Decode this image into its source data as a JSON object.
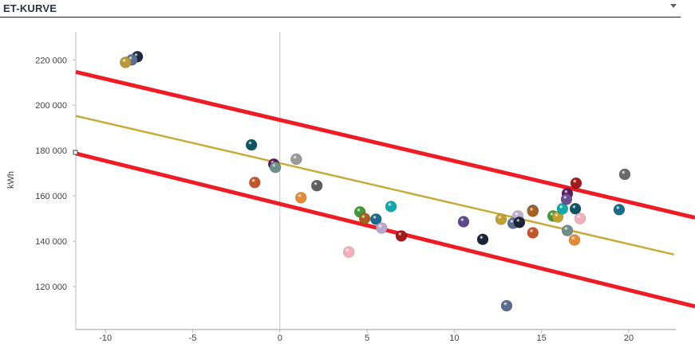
{
  "header": {
    "title": "ET-KURVE",
    "menu_icon": "caret-down-icon"
  },
  "chart_data": {
    "type": "scatter",
    "title": "ET-KURVE",
    "xlabel": "",
    "ylabel": "kWh",
    "xlim": [
      -11.7,
      22.7
    ],
    "ylim": [
      101000,
      232400
    ],
    "xticks": [
      -10,
      -5,
      0,
      5,
      10,
      15,
      20
    ],
    "xtick_labels": [
      "-10",
      "-5",
      "0",
      "5",
      "10",
      "15",
      "20"
    ],
    "yticks": [
      120000,
      140000,
      160000,
      180000,
      200000,
      220000
    ],
    "ytick_labels": [
      "120 000",
      "140 000",
      "160 000",
      "180 000",
      "200 000",
      "220 000"
    ],
    "grid": false,
    "points": [
      {
        "x": -8.17,
        "y": 221400,
        "color": "#1f2a3e"
      },
      {
        "x": -8.49,
        "y": 220000,
        "color": "#5b6e8f"
      },
      {
        "x": -8.85,
        "y": 218900,
        "color": "#b89a3a"
      },
      {
        "x": -1.63,
        "y": 182500,
        "color": "#0e5561"
      },
      {
        "x": -0.35,
        "y": 174000,
        "color": "#5a1a5e"
      },
      {
        "x": -0.26,
        "y": 172600,
        "color": "#6f8f86"
      },
      {
        "x": -1.44,
        "y": 165900,
        "color": "#c2562a"
      },
      {
        "x": 0.94,
        "y": 176200,
        "color": "#9a9a9a"
      },
      {
        "x": 1.21,
        "y": 159200,
        "color": "#e08a3a"
      },
      {
        "x": 2.12,
        "y": 164500,
        "color": "#5e5e5e"
      },
      {
        "x": 4.59,
        "y": 152900,
        "color": "#3f9a3a"
      },
      {
        "x": 4.86,
        "y": 150000,
        "color": "#a8601e"
      },
      {
        "x": 5.51,
        "y": 149700,
        "color": "#1c6a8a"
      },
      {
        "x": 5.83,
        "y": 145800,
        "color": "#b8a8c8"
      },
      {
        "x": 6.37,
        "y": 155300,
        "color": "#13a8a8"
      },
      {
        "x": 6.96,
        "y": 142300,
        "color": "#a01c1c"
      },
      {
        "x": 3.95,
        "y": 135200,
        "color": "#f0b0bc"
      },
      {
        "x": 10.53,
        "y": 148600,
        "color": "#5e4a8a"
      },
      {
        "x": 11.63,
        "y": 140800,
        "color": "#1a2238"
      },
      {
        "x": 12.68,
        "y": 149700,
        "color": "#c0a030"
      },
      {
        "x": 13.64,
        "y": 151100,
        "color": "#c0b0cc"
      },
      {
        "x": 13.37,
        "y": 147900,
        "color": "#5b6e8f"
      },
      {
        "x": 13.73,
        "y": 148300,
        "color": "#1a2238"
      },
      {
        "x": 14.5,
        "y": 153600,
        "color": "#7a7a7a"
      },
      {
        "x": 14.5,
        "y": 153200,
        "color": "#a8601e"
      },
      {
        "x": 14.5,
        "y": 143700,
        "color": "#c2562a"
      },
      {
        "x": 15.66,
        "y": 151100,
        "color": "#3f9a3a"
      },
      {
        "x": 15.93,
        "y": 150700,
        "color": "#c0a030"
      },
      {
        "x": 16.2,
        "y": 154300,
        "color": "#13a8a8"
      },
      {
        "x": 16.48,
        "y": 161000,
        "color": "#5a1a5e"
      },
      {
        "x": 16.43,
        "y": 158500,
        "color": "#6a4e8e"
      },
      {
        "x": 16.98,
        "y": 165600,
        "color": "#a01c1c"
      },
      {
        "x": 16.94,
        "y": 154300,
        "color": "#0e5561"
      },
      {
        "x": 17.21,
        "y": 150000,
        "color": "#f0b0bc"
      },
      {
        "x": 16.48,
        "y": 144700,
        "color": "#6f8f86"
      },
      {
        "x": 16.89,
        "y": 140500,
        "color": "#e08a3a"
      },
      {
        "x": 19.77,
        "y": 169500,
        "color": "#6a6a6a"
      },
      {
        "x": 19.45,
        "y": 153900,
        "color": "#1c6a8a"
      },
      {
        "x": 13.0,
        "y": 111500,
        "color": "#5b6e8f"
      }
    ],
    "lines": [
      {
        "name": "upper-limit",
        "color": "#ee1c25",
        "x": [
          -11.7,
          23.8
        ],
        "y": [
          214700,
          150400
        ]
      },
      {
        "name": "trend",
        "color": "#c8ac3a",
        "x": [
          -11.7,
          22.6
        ],
        "y": [
          195300,
          134100
        ]
      },
      {
        "name": "lower-limit",
        "color": "#ee1c25",
        "x": [
          -11.7,
          23.8
        ],
        "y": [
          178700,
          111200
        ]
      }
    ]
  }
}
